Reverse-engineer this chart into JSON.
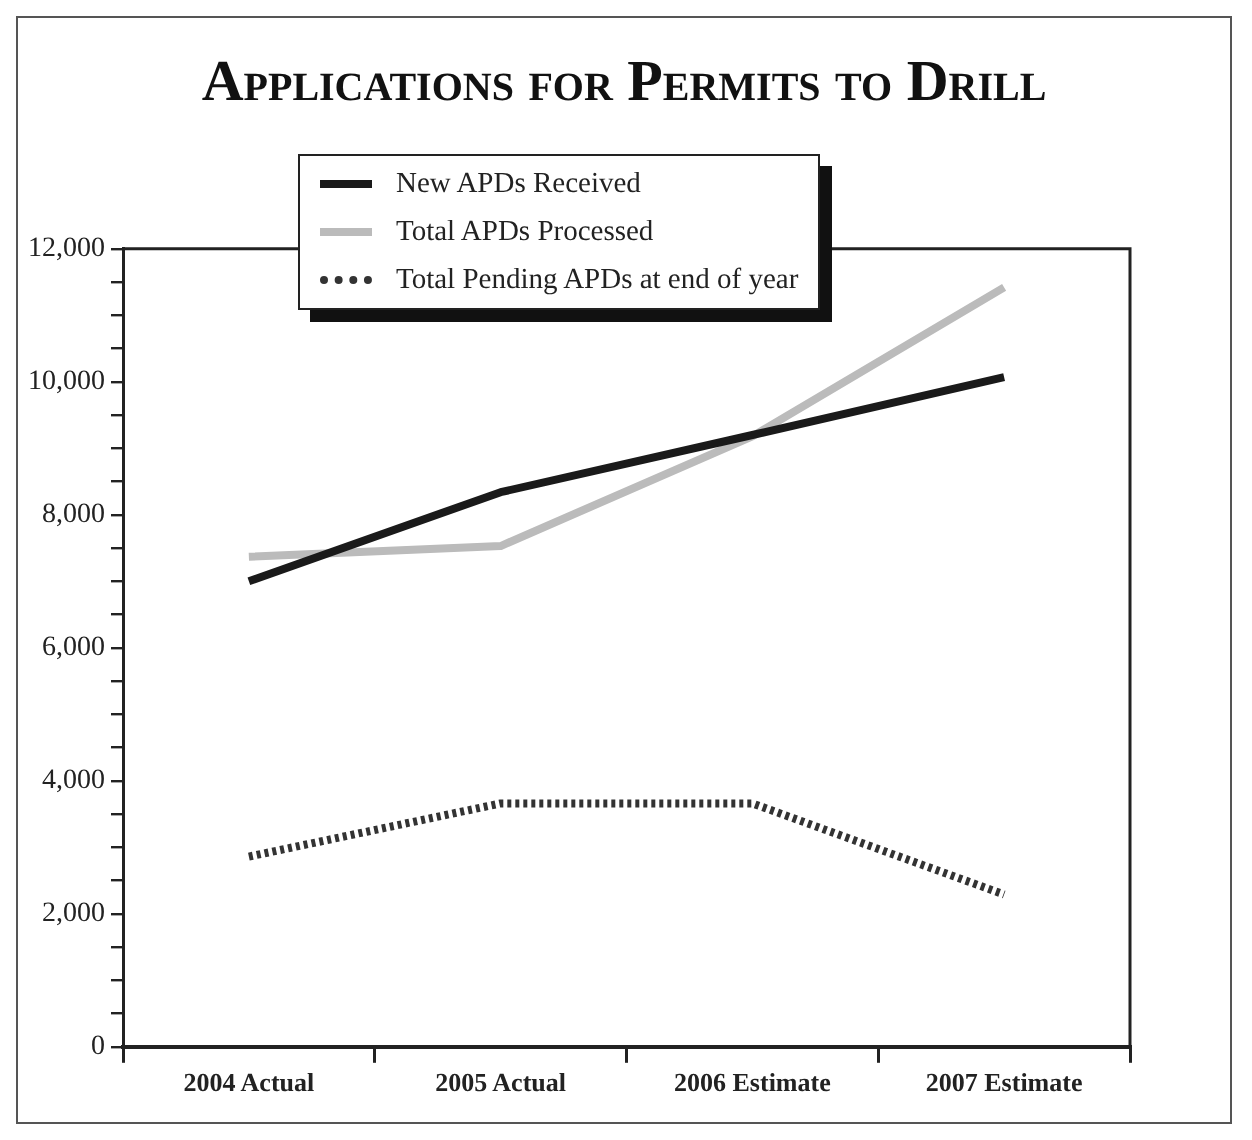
{
  "chart_data": {
    "type": "line",
    "title": "Applications for Permits to Drill",
    "categories": [
      "2004 Actual",
      "2005 Actual",
      "2006 Estimate",
      "2007 Estimate"
    ],
    "series": [
      {
        "name": "New APDs Received",
        "color": "#1a1a1a",
        "values": [
          7000,
          8340,
          9200,
          10070
        ]
      },
      {
        "name": "Total APDs Processed",
        "color": "#bbbbbb",
        "values": [
          7370,
          7530,
          9180,
          11420
        ]
      },
      {
        "name": "Total Pending APDs at end of year",
        "color": "#333333",
        "line_style": "dotted",
        "values": [
          2860,
          3660,
          3660,
          2290
        ]
      }
    ],
    "ylim": [
      0,
      12000
    ],
    "yticks": [
      0,
      {
        "value": 500,
        "label": null
      },
      {
        "value": 1000,
        "label": null
      },
      {
        "value": 1500,
        "label": null
      },
      {
        "value": 2000,
        "label": "2,000"
      },
      {
        "value": 2500,
        "label": null
      },
      {
        "value": 3000,
        "label": null
      },
      {
        "value": 3500,
        "label": null
      },
      {
        "value": 4000,
        "label": "4,000"
      },
      {
        "value": 4500,
        "label": null
      },
      {
        "value": 5000,
        "label": null
      },
      {
        "value": 5500,
        "label": null
      },
      {
        "value": 6000,
        "label": "6,000"
      },
      {
        "value": 6500,
        "label": null
      },
      {
        "value": 7000,
        "label": null
      },
      {
        "value": 7500,
        "label": null
      },
      {
        "value": 8000,
        "label": "8,000"
      },
      {
        "value": 8500,
        "label": null
      },
      {
        "value": 9000,
        "label": null
      },
      {
        "value": 9500,
        "label": null
      },
      {
        "value": 10000,
        "label": "10,000"
      },
      {
        "value": 10500,
        "label": null
      },
      {
        "value": 11000,
        "label": null
      },
      {
        "value": 11500,
        "label": null
      },
      {
        "value": 12000,
        "label": "12,000"
      }
    ],
    "legend": "top left",
    "grid": false,
    "marker": "none",
    "line_style": "solid"
  }
}
